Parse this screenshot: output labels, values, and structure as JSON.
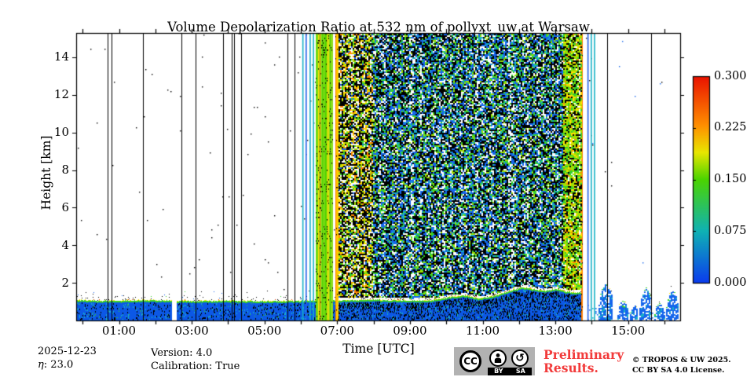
{
  "chart_data": {
    "type": "heatmap",
    "title": "Volume Depolarization Ratio at 532 nm of pollyxt_uw at Warsaw",
    "xlabel": "Time [UTC]",
    "ylabel": "Height [km]",
    "x_axis": {
      "tick_interval_hours": 1,
      "first_tick_hour": 0,
      "last_tick_hour": 16,
      "end_hour": 16.43,
      "labels": [
        "01:00",
        "03:00",
        "05:00",
        "07:00",
        "09:00",
        "11:00",
        "13:00",
        "15:00"
      ],
      "label_hours": [
        1,
        3,
        5,
        7,
        9,
        11,
        13,
        15
      ]
    },
    "y_axis": {
      "min_km": 0,
      "max_km": 15.3,
      "tick_labels": [
        "2",
        "4",
        "6",
        "8",
        "10",
        "12",
        "14"
      ],
      "tick_km": [
        2,
        4,
        6,
        8,
        10,
        12,
        14
      ]
    },
    "colorbar": {
      "min": 0.0,
      "max": 0.3,
      "tick_labels": [
        "0.300",
        "0.225",
        "0.150",
        "0.075",
        "0.000"
      ],
      "tick_values": [
        0.3,
        0.225,
        0.15,
        0.075,
        0.0
      ],
      "gradient_bottom_to_top": [
        [
          "#0b3cee",
          0
        ],
        [
          "#0fb2b4",
          0.25
        ],
        [
          "#4bd400",
          0.5
        ],
        [
          "#e8e600",
          0.63
        ],
        [
          "#ff9000",
          0.76
        ],
        [
          "#ea1200",
          1
        ]
      ]
    },
    "features": {
      "boundary_layer": {
        "fill_color": "#0c58e6",
        "edge_color": "#3bd41e",
        "edge_accent_yellow": "#ffe000",
        "edge_accent_red": "#e83c00",
        "cyan_speckle": "#18b0c8",
        "start_hour": -0.2,
        "end_hour": 13.71,
        "gap_hours": [
          2.44,
          2.58
        ],
        "top_km_profile": [
          [
            -0.2,
            1.02
          ],
          [
            1,
            1.0
          ],
          [
            2,
            1.02
          ],
          [
            3,
            0.98
          ],
          [
            4,
            1.0
          ],
          [
            5,
            0.97
          ],
          [
            6,
            1.0
          ],
          [
            7,
            1.02
          ],
          [
            8,
            1.05
          ],
          [
            9,
            1.0
          ],
          [
            9.6,
            1.02
          ],
          [
            10.1,
            1.2
          ],
          [
            10.5,
            1.28
          ],
          [
            10.9,
            1.12
          ],
          [
            11.3,
            1.25
          ],
          [
            11.8,
            1.55
          ],
          [
            12.1,
            1.72
          ],
          [
            12.4,
            1.6
          ],
          [
            12.7,
            1.52
          ],
          [
            13.0,
            1.62
          ],
          [
            13.3,
            1.5
          ],
          [
            13.5,
            1.42
          ],
          [
            13.71,
            1.45
          ]
        ]
      },
      "black_gap_line_hours": [
        0.69,
        0.79,
        1.66,
        2.72,
        3.11,
        3.86,
        4.1,
        4.17,
        4.36,
        5.63,
        5.83,
        14.42,
        15.63
      ],
      "colored_line_hours": [
        {
          "hour": 6.04,
          "color": "#17b2c6"
        },
        {
          "hour": 6.13,
          "color": "#2563e8"
        },
        {
          "hour": 6.24,
          "color": "#17b2c6"
        },
        {
          "hour": 6.33,
          "color": "#17b2c6"
        },
        {
          "hour": 13.88,
          "color": "#2563e8"
        },
        {
          "hour": 13.97,
          "color": "#17b2c6"
        },
        {
          "hour": 14.06,
          "color": "#17b2c6"
        }
      ],
      "calibration_band": {
        "start_hour": 6.42,
        "end_hour": 6.89,
        "palette": [
          [
            "#8cdc1e",
            0.42
          ],
          [
            "#4bd400",
            0.22
          ],
          [
            "#c8e800",
            0.16
          ],
          [
            "#ffe000",
            0.14
          ],
          [
            "#ff8800",
            0.06
          ]
        ]
      },
      "orange_stripes": {
        "hours": [
          [
            6.95,
            7.04
          ],
          [
            13.71,
            13.76
          ]
        ],
        "palette": [
          [
            "#ff7d00",
            0.55
          ],
          [
            "#ef3300",
            0.25
          ],
          [
            "#ffc800",
            0.2
          ]
        ]
      },
      "noise_region": {
        "start_hour": 7.04,
        "end_hour": 13.71,
        "zones": [
          {
            "from": 7.04,
            "to": 7.95,
            "palette": [
              [
                "#000000",
                0.42
              ],
              [
                "#ffe000",
                0.13
              ],
              [
                "#ff8800",
                0.07
              ],
              [
                "#a0e000",
                0.12
              ],
              [
                "#35d22c",
                0.08
              ],
              [
                "#1565ec",
                0.07
              ],
              [
                "#ffffff",
                0.11
              ]
            ]
          },
          {
            "from": 7.95,
            "to": 13.2,
            "palette": [
              [
                "#000000",
                0.4
              ],
              [
                "#1565ec",
                0.22
              ],
              [
                "#17b2c6",
                0.09
              ],
              [
                "#35d22c",
                0.12
              ],
              [
                "#a0e000",
                0.07
              ],
              [
                "#ffffff",
                0.1
              ]
            ]
          },
          {
            "from": 13.2,
            "to": 13.71,
            "palette": [
              [
                "#a0e000",
                0.3
              ],
              [
                "#35d22c",
                0.2
              ],
              [
                "#ffe000",
                0.15
              ],
              [
                "#000000",
                0.25
              ],
              [
                "#ff8800",
                0.05
              ],
              [
                "#ffffff",
                0.05
              ]
            ]
          }
        ]
      },
      "cloud_plumes": [
        {
          "from_hour": 14.19,
          "to_hour": 14.57,
          "top_km": 1.9
        },
        {
          "from_hour": 14.7,
          "to_hour": 15.01,
          "top_km": 1.0
        },
        {
          "from_hour": 15.05,
          "to_hour": 15.26,
          "top_km": 0.75
        },
        {
          "from_hour": 15.31,
          "to_hour": 15.65,
          "top_km": 1.65
        },
        {
          "from_hour": 15.72,
          "to_hour": 16.0,
          "top_km": 0.8
        },
        {
          "from_hour": 16.04,
          "to_hour": 16.37,
          "top_km": 1.5
        }
      ]
    }
  },
  "annotations": {
    "date": "2025-12-23",
    "eta_symbol": "η",
    "eta_value": ": 23.0",
    "version": "Version: 4.0",
    "calibration": "Calibration: True",
    "preliminary_line1": "Preliminary",
    "preliminary_line2": "Results.",
    "copyright_line1": "© TROPOS & UW 2025.",
    "copyright_line2": "CC BY SA 4.0 License.",
    "cc_label": "CC",
    "cc_by_label": "BY",
    "cc_sa_label": "SA",
    "sa_arrow_glyph": "↺"
  },
  "colors": {
    "preliminary_red": "#f23b3b",
    "badge_gray": "#b2b2b2",
    "axis_black": "#000000"
  }
}
